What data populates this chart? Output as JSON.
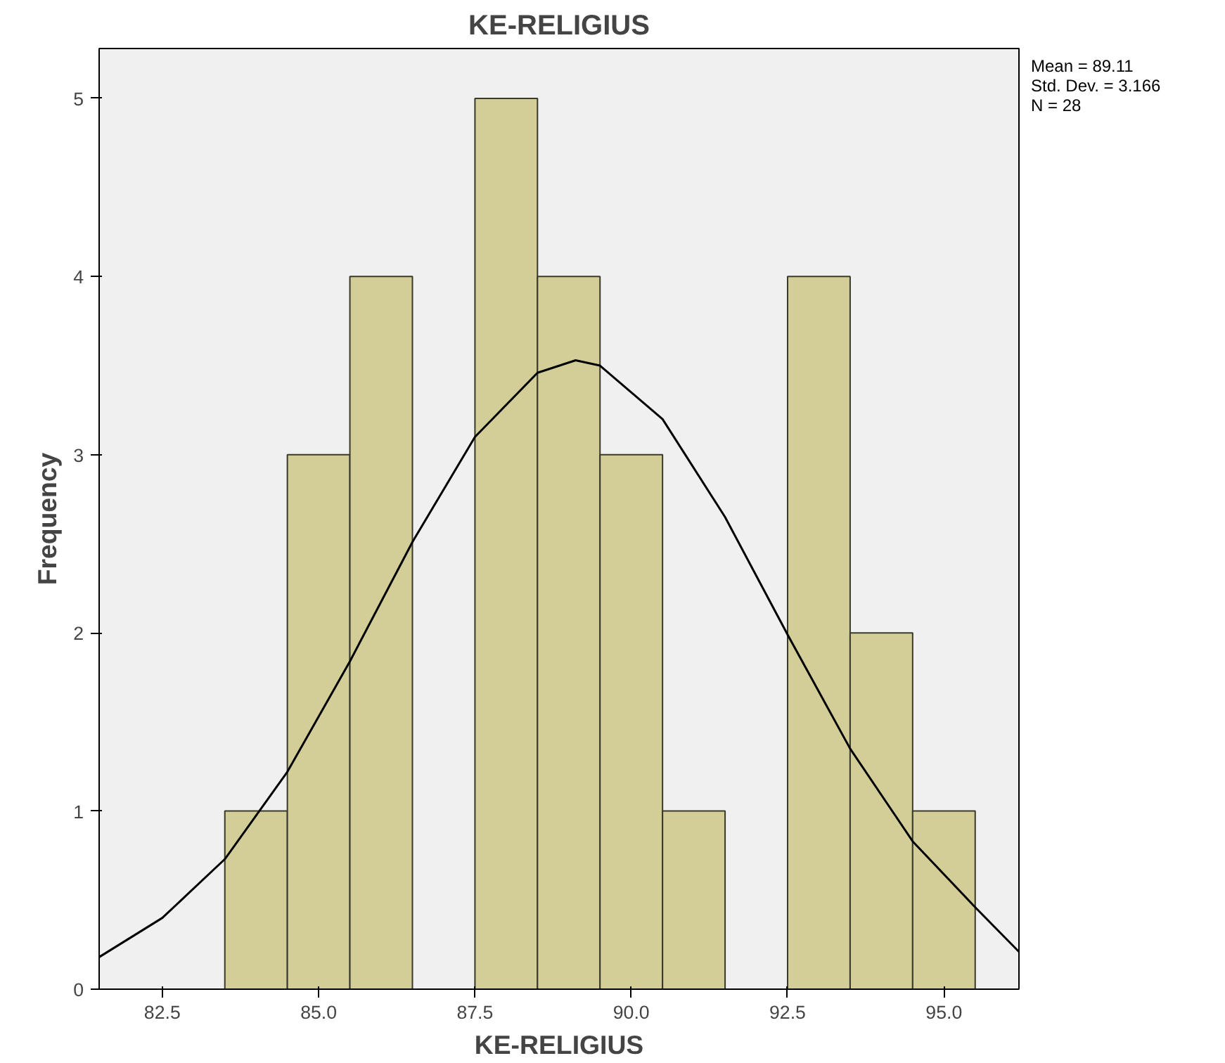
{
  "chart_data": {
    "type": "histogram",
    "title": "KE-RELIGIUS",
    "xlabel": "KE-RELIGIUS",
    "ylabel": "Frequency",
    "bins": [
      83.5,
      84.5,
      85.5,
      86.5,
      87.5,
      88.5,
      89.5,
      90.5,
      91.5,
      92.5,
      93.5,
      94.5,
      95.5
    ],
    "values": [
      1,
      3,
      4,
      0,
      5,
      4,
      3,
      1,
      0,
      4,
      2,
      1
    ],
    "color": "#d3ce97",
    "series": [
      {
        "type": "line",
        "color": "#000000",
        "x": [
          81.49,
          82.5,
          83.5,
          84.5,
          85.5,
          86.5,
          87.5,
          88.5,
          89.11,
          89.5,
          90.5,
          91.5,
          92.5,
          93.5,
          94.5,
          95.5,
          96.2
        ],
        "values": [
          0.18,
          0.4,
          0.73,
          1.22,
          1.84,
          2.51,
          3.1,
          3.46,
          3.53,
          3.5,
          3.2,
          2.65,
          1.99,
          1.35,
          0.83,
          0.46,
          0.21
        ]
      }
    ],
    "xlim": [
      81.49,
      96.2
    ],
    "ylim": [
      0,
      5.28
    ],
    "xticks": [
      {
        "value": 82.5,
        "label": "82.5"
      },
      {
        "value": 85,
        "label": "85.0"
      },
      {
        "value": 87.5,
        "label": "87.5"
      },
      {
        "value": 90,
        "label": "90.0"
      },
      {
        "value": 92.5,
        "label": "92.5"
      },
      {
        "value": 95,
        "label": "95.0"
      }
    ],
    "yticks": [
      0,
      1,
      2,
      3,
      4,
      5
    ],
    "grid": false,
    "annotations": [
      "Mean = 89.11",
      "Std. Dev. = 3.166",
      "N = 28"
    ]
  }
}
